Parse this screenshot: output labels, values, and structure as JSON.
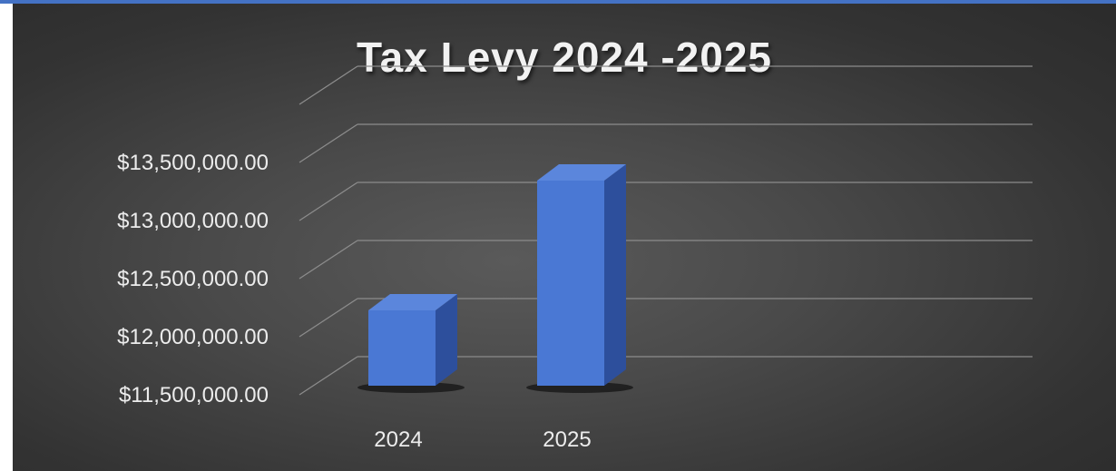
{
  "colors": {
    "accent_strip": "#4472c4",
    "bar_front": "#4a78d4",
    "bar_side": "#2d4f9c",
    "bar_top": "#5b86dc"
  },
  "chart_data": {
    "type": "bar",
    "title": "Tax Levy 2024 -2025",
    "xlabel": "",
    "ylabel": "",
    "categories": [
      "2024",
      "2025"
    ],
    "values": [
      12150000,
      13270000
    ],
    "ylim": [
      11500000,
      13750000
    ],
    "yticks": [
      11500000,
      12000000,
      12500000,
      13000000,
      13500000
    ],
    "ytick_labels": [
      "$11,500,000.00",
      "$12,000,000.00",
      "$12,500,000.00",
      "$13,000,000.00",
      "$13,500,000.00"
    ],
    "grid": true,
    "style": "3d-column"
  }
}
